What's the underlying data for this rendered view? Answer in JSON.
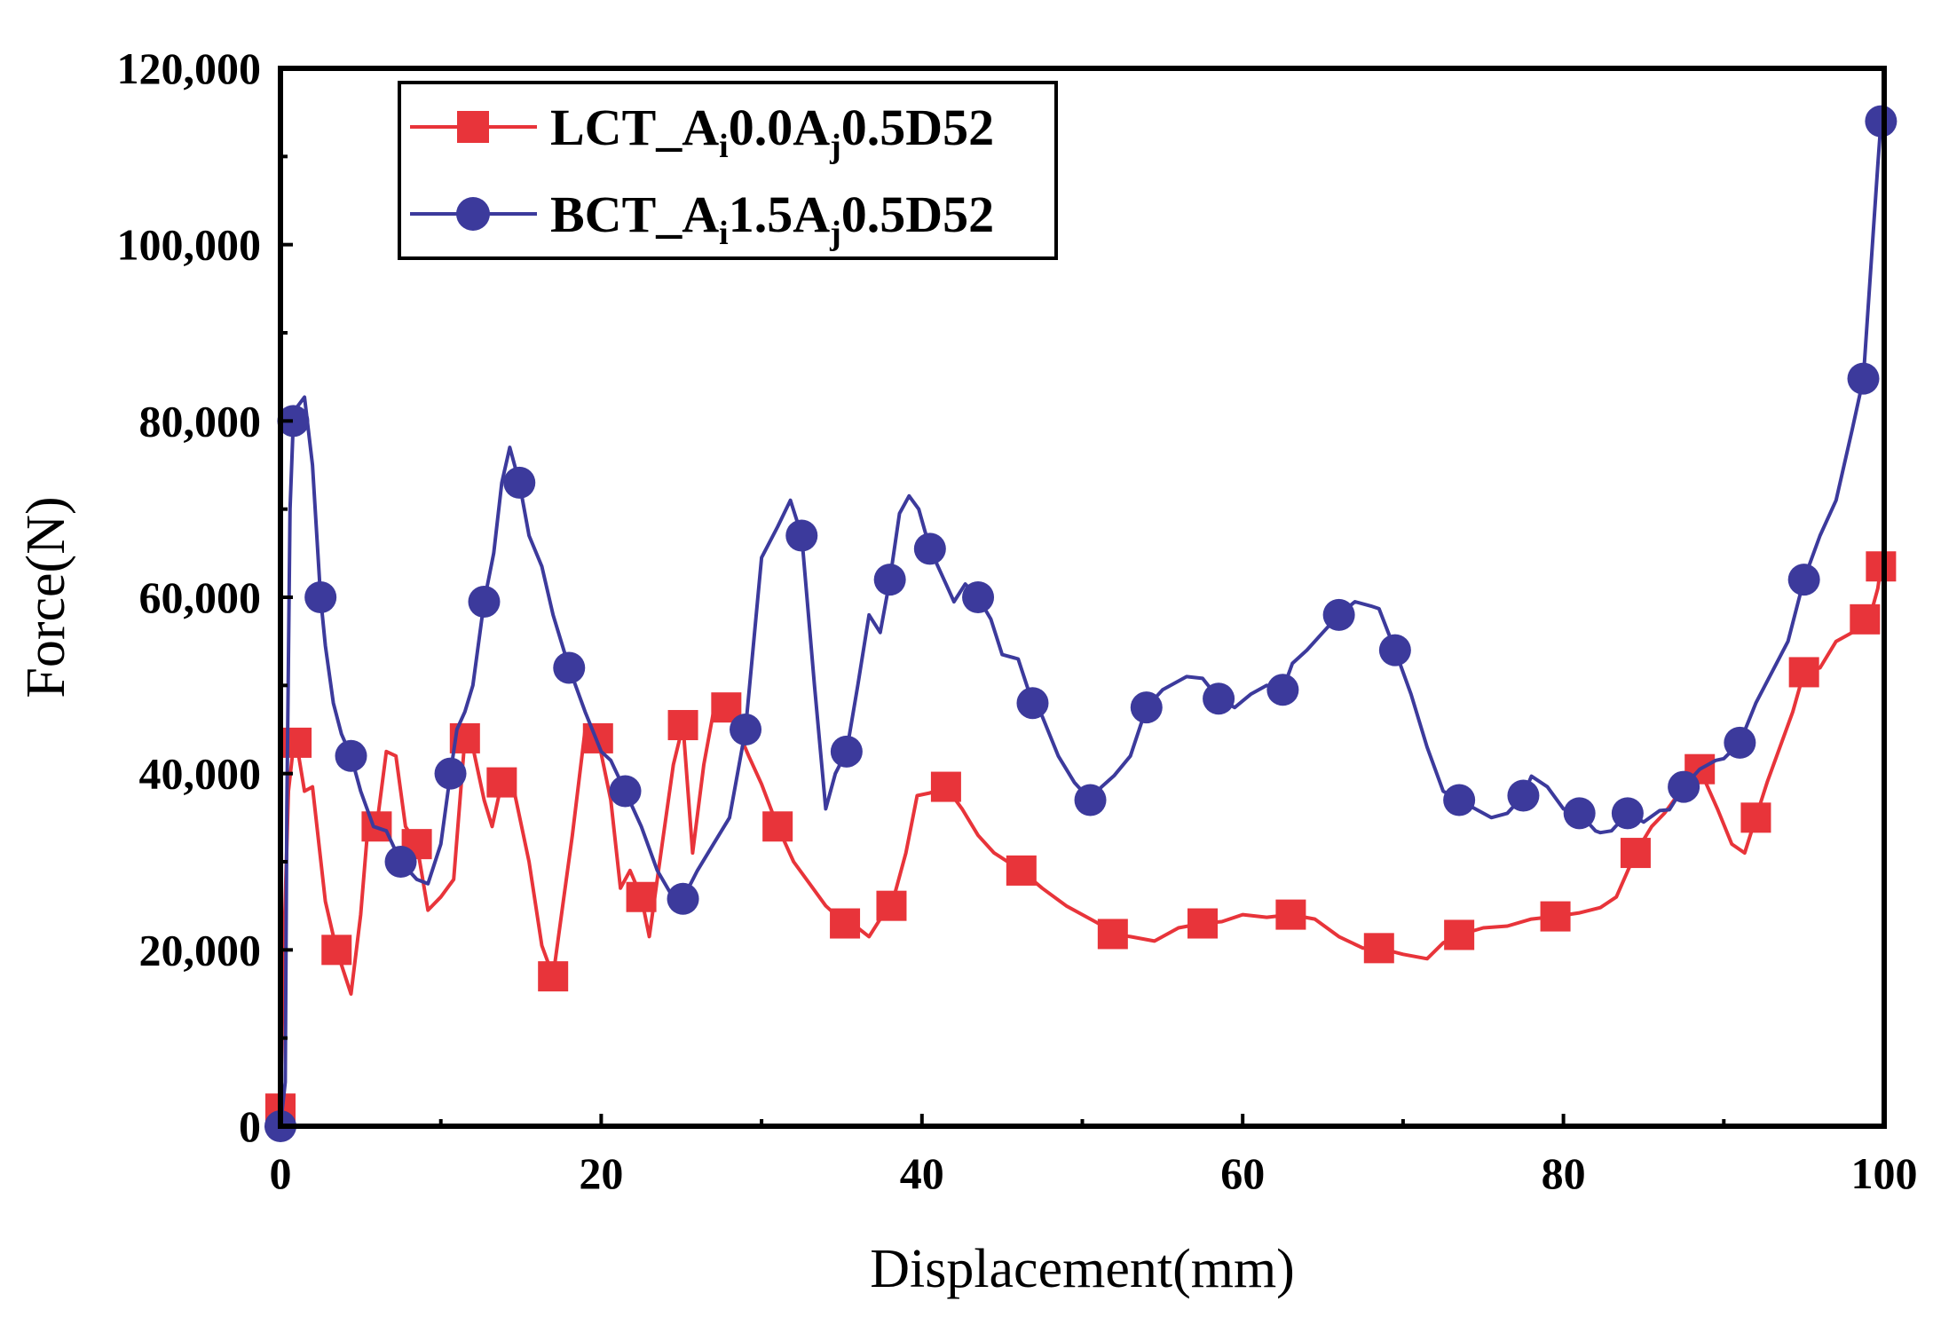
{
  "chart_data": {
    "type": "line",
    "title": "",
    "xlabel": "Displacement(mm)",
    "ylabel": "Force(N)",
    "xlim": [
      0,
      100
    ],
    "ylim": [
      0,
      120000
    ],
    "xticks": [
      "0",
      "20",
      "40",
      "60",
      "80",
      "100"
    ],
    "yticks": [
      "0",
      "20,000",
      "40,000",
      "60,000",
      "80,000",
      "100,000",
      "120,000"
    ],
    "grid": false,
    "legend": "top-left",
    "series": [
      {
        "name": "LCT_Ai0.0Aj0.5D52",
        "label_parts": [
          {
            "t": "LCT_A",
            "sub": false
          },
          {
            "t": "i",
            "sub": true
          },
          {
            "t": "0.0A",
            "sub": false
          },
          {
            "t": "j",
            "sub": true
          },
          {
            "t": "0.5D52",
            "sub": false
          }
        ],
        "color": "#e8343a",
        "marker": "square",
        "x": [
          0,
          0.2,
          0.5,
          0.8,
          1.0,
          1.5,
          2,
          2.8,
          3.5,
          4.4,
          5.0,
          5.5,
          6.0,
          6.6,
          7.2,
          7.8,
          8.5,
          9.2,
          10.0,
          10.8,
          11.5,
          12.0,
          12.7,
          13.2,
          13.8,
          14.4,
          15.5,
          16.3,
          17.0,
          17.6,
          18.2,
          19.0,
          19.8,
          20.6,
          21.2,
          21.8,
          22.5,
          23.0,
          23.8,
          24.5,
          25.1,
          25.7,
          26.4,
          27.1,
          27.8,
          28.5,
          29.2,
          30.0,
          31.0,
          32.0,
          33.0,
          34.0,
          35.2,
          36.0,
          36.7,
          37.4,
          38.1,
          39.0,
          39.7,
          40.5,
          41.5,
          42.5,
          43.5,
          44.5,
          46.2,
          47.5,
          49.0,
          51.0,
          51.9,
          53.0,
          54.5,
          56.0,
          57.5,
          58.7,
          60.0,
          61.5,
          63.0,
          64.5,
          66.0,
          67.5,
          68.5,
          70.0,
          71.5,
          72.5,
          73.5,
          75.0,
          76.5,
          78.0,
          79.5,
          81.0,
          82.3,
          83.3,
          84.5,
          85.5,
          86.3,
          87.5,
          88.5,
          89.6,
          90.5,
          91.3,
          92.0,
          92.7,
          93.5,
          94.3,
          95.0,
          96.0,
          97.0,
          98.0,
          98.8,
          99.3,
          99.6,
          99.8
        ],
        "y": [
          2000,
          19500,
          38000,
          43000,
          43500,
          38000,
          38500,
          25500,
          20000,
          15000,
          24000,
          35000,
          34000,
          42500,
          42000,
          34000,
          32000,
          24500,
          26000,
          28000,
          44000,
          43000,
          37000,
          34000,
          39000,
          39500,
          30000,
          20500,
          17000,
          25000,
          33000,
          45000,
          44000,
          37000,
          27000,
          29000,
          26000,
          21500,
          32000,
          41000,
          45500,
          31000,
          41000,
          48000,
          47500,
          45000,
          42000,
          38800,
          34000,
          30000,
          27500,
          25000,
          23000,
          22500,
          21500,
          23500,
          25000,
          31000,
          37500,
          37800,
          38500,
          36000,
          33000,
          31000,
          29000,
          27000,
          25000,
          23000,
          21800,
          21500,
          21000,
          22500,
          23000,
          23200,
          24000,
          23700,
          24000,
          23500,
          21500,
          20200,
          20200,
          19500,
          19000,
          20800,
          21700,
          22500,
          22700,
          23500,
          23800,
          24200,
          24800,
          26000,
          31000,
          34000,
          35500,
          38500,
          40500,
          36000,
          32000,
          31000,
          35000,
          39000,
          43000,
          47000,
          51500,
          52000,
          55000,
          56000,
          57500,
          59000,
          61000,
          63500
        ]
      },
      {
        "name": "BCT_Ai1.5Aj0.5D52",
        "label_parts": [
          {
            "t": "BCT_A",
            "sub": false
          },
          {
            "t": "i",
            "sub": true
          },
          {
            "t": "1.5A",
            "sub": false
          },
          {
            "t": "j",
            "sub": true
          },
          {
            "t": "0.5D52",
            "sub": false
          }
        ],
        "color": "#3c3a9c",
        "marker": "circle",
        "x": [
          0,
          0.3,
          0.4,
          0.6,
          0.8,
          1.0,
          1.5,
          2.0,
          2.5,
          2.8,
          3.3,
          3.8,
          4.4,
          5.0,
          5.8,
          6.6,
          7.5,
          8.5,
          9.2,
          10.0,
          10.6,
          11.0,
          11.5,
          12.0,
          12.7,
          13.3,
          13.8,
          14.3,
          14.9,
          15.5,
          16.3,
          17.0,
          18.0,
          19.0,
          20.0,
          20.6,
          21.5,
          22.5,
          23.5,
          24.3,
          25.1,
          26.0,
          27.0,
          28.0,
          29.0,
          30.0,
          31.0,
          31.8,
          32.5,
          33.3,
          34.0,
          34.6,
          35.3,
          36.0,
          36.7,
          37.4,
          38.0,
          38.6,
          39.2,
          39.8,
          40.5,
          41.5,
          42.0,
          42.7,
          43.5,
          44.3,
          45.0,
          46.0,
          46.9,
          47.5,
          48.5,
          49.5,
          50.5,
          51.2,
          52.0,
          53.0,
          54.0,
          55.0,
          56.5,
          57.5,
          58.5,
          59.5,
          60.5,
          61.5,
          62.5,
          63.1,
          64.0,
          65.0,
          66.0,
          67.0,
          68.0,
          68.5,
          69.5,
          70.5,
          71.5,
          72.5,
          73.5,
          74.5,
          75.5,
          76.5,
          77.5,
          78.0,
          79.0,
          80.0,
          81.0,
          82.0,
          82.3,
          83.0,
          84.0,
          85.0,
          86.0,
          86.6,
          87.5,
          88.5,
          89.5,
          90.0,
          91.0,
          92.0,
          93.0,
          94.0,
          95.0,
          96.0,
          97.0,
          98.0,
          98.7,
          99.3,
          99.6,
          99.8
        ],
        "y": [
          0,
          5000,
          36000,
          70000,
          80000,
          81500,
          82700,
          75000,
          60000,
          54500,
          48000,
          44500,
          42000,
          38000,
          34000,
          33500,
          30000,
          28000,
          27500,
          32000,
          40000,
          45000,
          47000,
          50000,
          59500,
          65000,
          73000,
          77000,
          73000,
          67000,
          63500,
          58000,
          52000,
          47000,
          42500,
          41500,
          38000,
          34000,
          29000,
          26500,
          25800,
          29000,
          32000,
          35000,
          45000,
          64500,
          68000,
          71000,
          67000,
          50000,
          36000,
          40000,
          42500,
          50000,
          58000,
          56000,
          62000,
          69500,
          71500,
          70000,
          65500,
          61500,
          59500,
          61500,
          60000,
          57500,
          53500,
          53000,
          48000,
          46500,
          42000,
          39000,
          37000,
          38500,
          39800,
          42000,
          47500,
          49500,
          51000,
          50800,
          48500,
          47500,
          49000,
          50000,
          49500,
          52500,
          54000,
          56000,
          58000,
          59500,
          59000,
          58700,
          54000,
          49000,
          43000,
          38000,
          37000,
          36000,
          35000,
          35500,
          37500,
          39700,
          38500,
          36000,
          35500,
          33500,
          33300,
          33500,
          35500,
          34500,
          35800,
          35900,
          38500,
          40500,
          41500,
          41700,
          43500,
          48000,
          51500,
          55000,
          62000,
          67000,
          71000,
          79000,
          84800,
          101000,
          109000,
          114000
        ]
      }
    ]
  }
}
